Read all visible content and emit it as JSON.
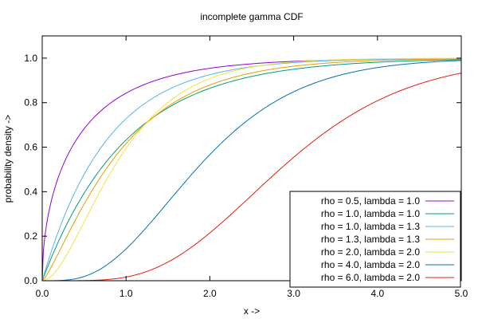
{
  "chart_data": {
    "type": "line",
    "title": "incomplete gamma CDF",
    "xlabel": "x ->",
    "ylabel": "probability density ->",
    "xlim": [
      0.0,
      5.0
    ],
    "ylim": [
      0.0,
      1.1
    ],
    "x_ticks": [
      "0.0",
      "1.0",
      "2.0",
      "3.0",
      "4.0",
      "5.0"
    ],
    "x_tick_values": [
      0,
      1,
      2,
      3,
      4,
      5
    ],
    "y_ticks": [
      "0.0",
      "0.2",
      "0.4",
      "0.6",
      "0.8",
      "1.0"
    ],
    "y_tick_values": [
      0,
      0.2,
      0.4,
      0.6,
      0.8,
      1.0
    ],
    "grid": false,
    "legend_position": "bottom-right",
    "function": "regularized lower incomplete gamma P(rho, lambda*x)",
    "x_step": 0.05,
    "series": [
      {
        "name": "rho = 0.5, lambda = 1.0",
        "rho": 0.5,
        "lambda": 1.0,
        "color": "#9400d3"
      },
      {
        "name": "rho = 1.0, lambda = 1.0",
        "rho": 1.0,
        "lambda": 1.0,
        "color": "#009e73"
      },
      {
        "name": "rho = 1.0, lambda = 1.3",
        "rho": 1.0,
        "lambda": 1.3,
        "color": "#56b4e9"
      },
      {
        "name": "rho = 1.3, lambda = 1.3",
        "rho": 1.3,
        "lambda": 1.3,
        "color": "#e69f00"
      },
      {
        "name": "rho = 2.0, lambda = 2.0",
        "rho": 2.0,
        "lambda": 2.0,
        "color": "#f0e442"
      },
      {
        "name": "rho = 4.0, lambda = 2.0",
        "rho": 4.0,
        "lambda": 2.0,
        "color": "#0072b2"
      },
      {
        "name": "rho = 6.0, lambda = 2.0",
        "rho": 6.0,
        "lambda": 2.0,
        "color": "#e51e10"
      }
    ]
  }
}
